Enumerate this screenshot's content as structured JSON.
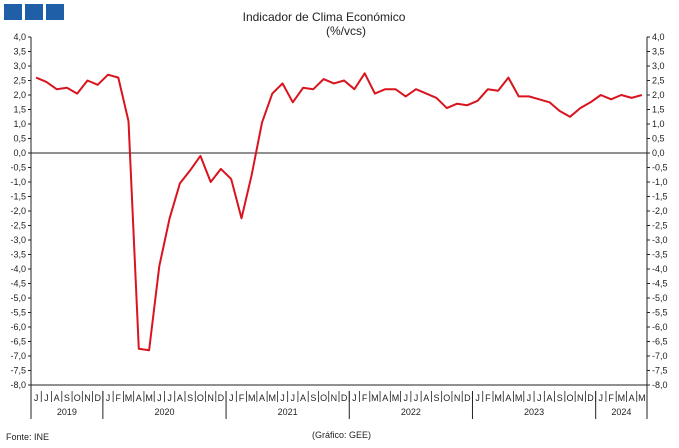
{
  "header": {
    "logo_icon": "ine-logo-blocks"
  },
  "chart_data": {
    "type": "line",
    "title": "Indicador de Clima Económico",
    "subtitle": "(%/vcs)",
    "xlabel": "",
    "ylabel": "",
    "ylim": [
      -8.0,
      4.0
    ],
    "ytick_step": 0.5,
    "yticks_labels": [
      "4,0",
      "3,5",
      "3,0",
      "2,5",
      "2,0",
      "1,5",
      "1,0",
      "0,5",
      "0,0",
      "-0,5",
      "-1,0",
      "-1,5",
      "-2,0",
      "-2,5",
      "-3,0",
      "-3,5",
      "-4,0",
      "-4,5",
      "-5,0",
      "-5,5",
      "-6,0",
      "-6,5",
      "-7,0",
      "-7,5",
      "-8,0"
    ],
    "grid": false,
    "legend": "none",
    "line_color": "#d9141e",
    "month_labels": [
      "J",
      "J",
      "A",
      "S",
      "O",
      "N",
      "D",
      "J",
      "F",
      "M",
      "A",
      "M",
      "J",
      "J",
      "A",
      "S",
      "O",
      "N",
      "D",
      "J",
      "F",
      "M",
      "A",
      "M",
      "J",
      "J",
      "A",
      "S",
      "O",
      "N",
      "D",
      "J",
      "F",
      "M",
      "A",
      "M",
      "J",
      "J",
      "A",
      "S",
      "O",
      "N",
      "D",
      "J",
      "F",
      "M",
      "A",
      "M",
      "J",
      "J",
      "A",
      "S",
      "O",
      "N",
      "D",
      "J",
      "F",
      "M",
      "A",
      "M"
    ],
    "year_labels": [
      "2019",
      "2020",
      "2021",
      "2022",
      "2023",
      "2024"
    ],
    "year_month_counts": [
      7,
      12,
      12,
      12,
      12,
      5
    ],
    "series": [
      {
        "values": [
          2.6,
          2.45,
          2.2,
          2.25,
          2.05,
          2.5,
          2.35,
          2.7,
          2.6,
          1.1,
          -6.75,
          -6.8,
          -3.9,
          -2.25,
          -1.05,
          -0.6,
          -0.1,
          -1.0,
          -0.55,
          -0.9,
          -2.25,
          -0.75,
          1.05,
          2.05,
          2.4,
          1.75,
          2.25,
          2.2,
          2.55,
          2.4,
          2.5,
          2.2,
          2.75,
          2.05,
          2.2,
          2.2,
          1.95,
          2.2,
          2.05,
          1.9,
          1.55,
          1.7,
          1.65,
          1.8,
          2.2,
          2.15,
          2.6,
          1.95,
          1.95,
          1.85,
          1.75,
          1.45,
          1.25,
          1.55,
          1.75,
          2.0,
          1.85,
          2.0,
          1.9,
          2.0
        ]
      }
    ]
  },
  "footer": {
    "source": "Fonte: INE",
    "credit": "(Gráfico: GEE)"
  }
}
